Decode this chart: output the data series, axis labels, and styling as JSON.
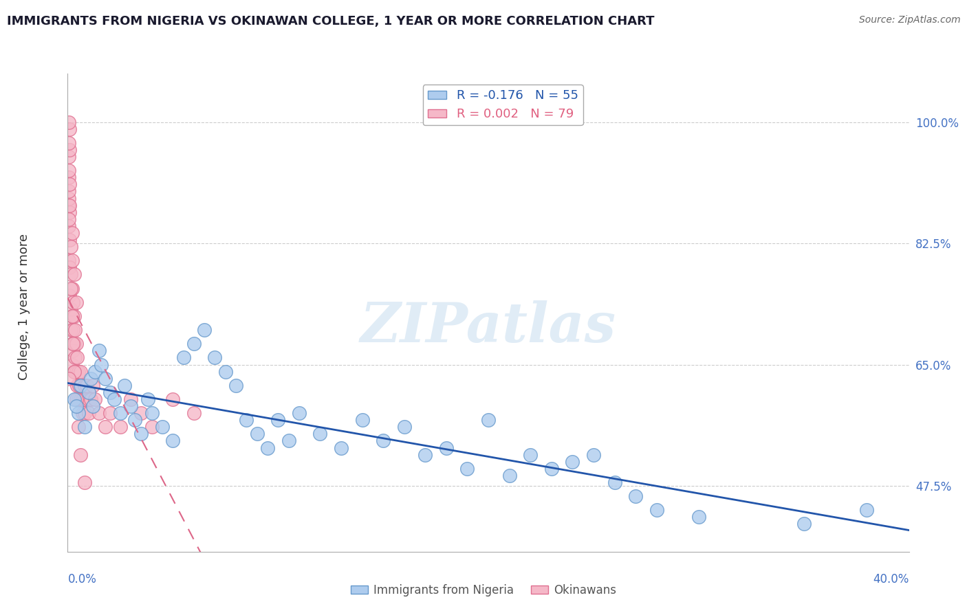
{
  "title": "IMMIGRANTS FROM NIGERIA VS OKINAWAN COLLEGE, 1 YEAR OR MORE CORRELATION CHART",
  "source": "Source: ZipAtlas.com",
  "ylabel": "College, 1 year or more",
  "blue_R": -0.176,
  "blue_N": 55,
  "pink_R": 0.002,
  "pink_N": 79,
  "blue_label": "Immigrants from Nigeria",
  "pink_label": "Okinawans",
  "blue_color": "#aeccee",
  "blue_edge": "#6699cc",
  "pink_color": "#f5b8c8",
  "pink_edge": "#e07090",
  "blue_line_color": "#2255aa",
  "pink_line_color": "#dd6688",
  "watermark": "ZIPatlas",
  "blue_x": [
    0.3,
    0.5,
    0.6,
    0.8,
    1.0,
    1.1,
    1.2,
    1.3,
    1.5,
    1.6,
    1.8,
    2.0,
    2.2,
    2.5,
    2.7,
    3.0,
    3.2,
    3.5,
    3.8,
    4.0,
    4.5,
    5.0,
    5.5,
    6.0,
    6.5,
    7.0,
    7.5,
    8.0,
    8.5,
    9.0,
    9.5,
    10.0,
    10.5,
    11.0,
    12.0,
    13.0,
    14.0,
    15.0,
    16.0,
    17.0,
    18.0,
    19.0,
    20.0,
    21.0,
    22.0,
    23.0,
    24.0,
    25.0,
    26.0,
    27.0,
    28.0,
    30.0,
    35.0,
    38.0,
    0.4
  ],
  "blue_y": [
    60.0,
    58.0,
    62.0,
    56.0,
    61.0,
    63.0,
    59.0,
    64.0,
    67.0,
    65.0,
    63.0,
    61.0,
    60.0,
    58.0,
    62.0,
    59.0,
    57.0,
    55.0,
    60.0,
    58.0,
    56.0,
    54.0,
    66.0,
    68.0,
    70.0,
    66.0,
    64.0,
    62.0,
    57.0,
    55.0,
    53.0,
    57.0,
    54.0,
    58.0,
    55.0,
    53.0,
    57.0,
    54.0,
    56.0,
    52.0,
    53.0,
    50.0,
    57.0,
    49.0,
    52.0,
    50.0,
    51.0,
    52.0,
    48.0,
    46.0,
    44.0,
    43.0,
    42.0,
    44.0,
    59.0
  ],
  "pink_x": [
    0.05,
    0.05,
    0.05,
    0.05,
    0.05,
    0.1,
    0.1,
    0.1,
    0.1,
    0.15,
    0.15,
    0.15,
    0.15,
    0.2,
    0.2,
    0.2,
    0.2,
    0.25,
    0.25,
    0.25,
    0.3,
    0.3,
    0.3,
    0.35,
    0.35,
    0.4,
    0.4,
    0.45,
    0.45,
    0.5,
    0.5,
    0.55,
    0.6,
    0.6,
    0.65,
    0.7,
    0.7,
    0.75,
    0.8,
    0.8,
    0.85,
    0.9,
    1.0,
    1.0,
    1.1,
    1.2,
    1.3,
    1.5,
    1.8,
    2.0,
    2.5,
    3.0,
    3.5,
    4.0,
    5.0,
    6.0,
    0.1,
    0.1,
    0.05,
    0.05,
    0.05,
    0.05,
    0.05,
    0.05,
    0.1,
    0.1,
    0.2,
    0.3,
    0.4,
    0.2,
    0.15,
    0.2,
    0.25,
    0.3,
    0.4,
    0.5,
    0.6,
    0.8,
    0.05
  ],
  "pink_y": [
    95.0,
    92.0,
    88.0,
    85.0,
    80.0,
    87.0,
    83.0,
    79.0,
    75.0,
    82.0,
    78.0,
    73.0,
    70.0,
    76.0,
    72.0,
    68.0,
    65.0,
    74.0,
    70.0,
    67.0,
    72.0,
    68.0,
    64.0,
    70.0,
    66.0,
    68.0,
    64.0,
    66.0,
    62.0,
    64.0,
    60.0,
    62.0,
    64.0,
    60.0,
    62.0,
    60.0,
    58.0,
    60.0,
    62.0,
    58.0,
    60.0,
    62.0,
    60.0,
    58.0,
    60.0,
    62.0,
    60.0,
    58.0,
    56.0,
    58.0,
    56.0,
    60.0,
    58.0,
    56.0,
    60.0,
    58.0,
    99.0,
    96.0,
    100.0,
    97.0,
    93.0,
    89.0,
    86.0,
    90.0,
    91.0,
    88.0,
    84.0,
    78.0,
    74.0,
    80.0,
    76.0,
    72.0,
    68.0,
    64.0,
    60.0,
    56.0,
    52.0,
    48.0,
    63.0
  ],
  "x_min": 0.0,
  "x_max": 40.0,
  "y_min": 38.0,
  "y_max": 107.0,
  "ytick_vals": [
    47.5,
    65.0,
    82.5,
    100.0
  ],
  "ytick_labels": [
    "47.5%",
    "65.0%",
    "82.5%",
    "100.0%"
  ]
}
